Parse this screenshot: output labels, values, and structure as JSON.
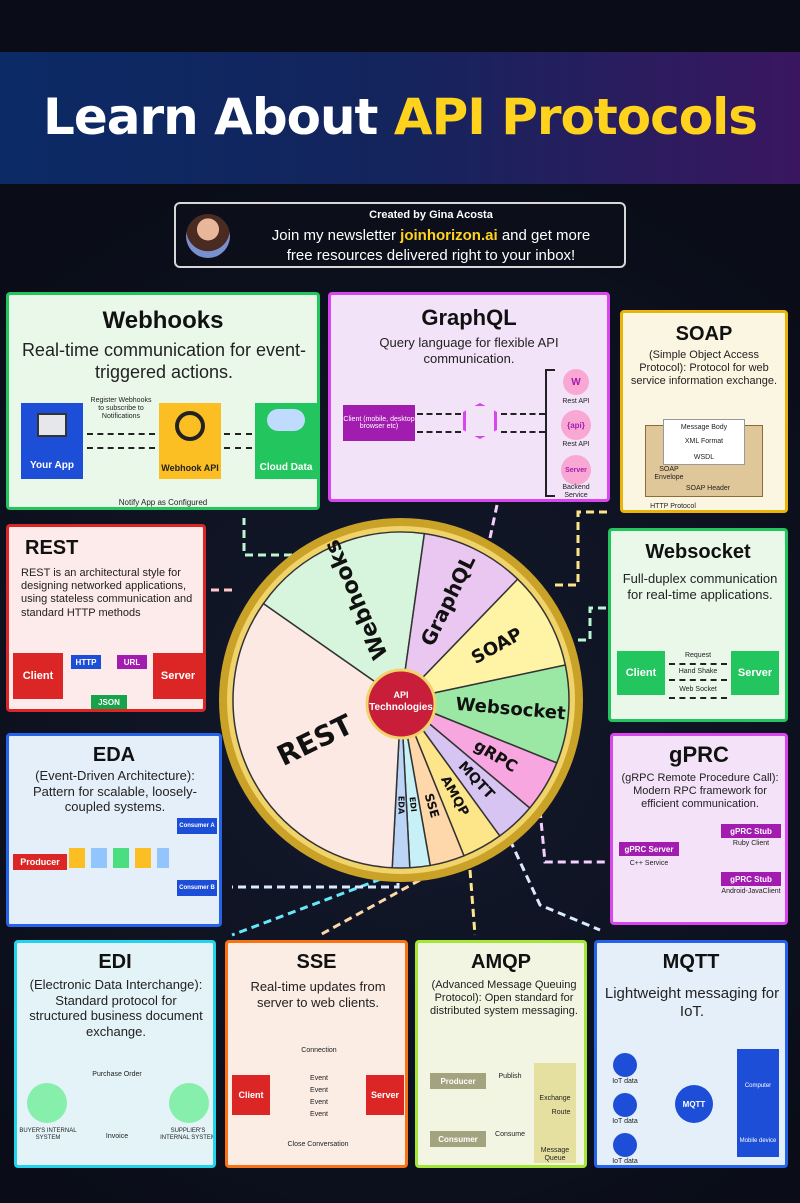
{
  "header": {
    "title_part1": "Learn About ",
    "title_part2": "API Protocols"
  },
  "credit": {
    "created_by": "Created by Gina Acosta",
    "line1_pre": "Join my newsletter ",
    "line1_site": "joinhorizon.ai",
    "line1_post": " and get more",
    "line2": "free resources delivered right to your inbox!"
  },
  "colors": {
    "webhooks": "#22c55e",
    "graphql": "#d946ef",
    "soap": "#eab308",
    "rest": "#dc2626",
    "websocket": "#22c55e",
    "eda": "#2563eb",
    "grpc": "#d946ef",
    "edi": "#22d3ee",
    "sse": "#f97316",
    "amqp": "#a3e635",
    "mqtt": "#2563eb"
  },
  "webhooks": {
    "title": "Webhooks",
    "desc": "Real-time communication for event-triggered actions.",
    "register": "Register Webhooks to subscribe to Notifications",
    "app": "Your App",
    "api": "Webhook API",
    "cloud": "Cloud Data",
    "notify": "Notify App as Configured"
  },
  "graphql": {
    "title": "GraphQL",
    "desc": "Query language for flexible API communication.",
    "client": "Client (mobile, desktop browser etc)",
    "rest_api1": "Rest API",
    "api_chip": "{api}",
    "rest_api2": "Rest API",
    "server": "Server",
    "backend": "Backend Service",
    "w": "W"
  },
  "soap": {
    "title": "SOAP",
    "desc": "(Simple Object Access Protocol): Protocol for web service information exchange.",
    "body": "Message Body",
    "xml": "XML Format",
    "wsdl": "WSDL",
    "envelope": "SOAP Envelope",
    "header": "SOAP Header",
    "http": "HTTP Protocol"
  },
  "rest": {
    "title": "REST",
    "desc": "REST is an architectural style for designing networked applications, using stateless communication and standard HTTP methods",
    "client": "Client",
    "server": "Server",
    "http": "HTTP",
    "url": "URL",
    "json": "JSON"
  },
  "websocket": {
    "title": "Websocket",
    "desc": "Full-duplex communication for real-time applications.",
    "client": "Client",
    "server": "Server",
    "request": "Request",
    "handshake": "Hand Shake",
    "ws": "Web Socket"
  },
  "eda": {
    "title": "EDA",
    "desc": "(Event-Driven Architecture): Pattern for scalable, loosely-coupled systems.",
    "producer": "Producer",
    "consumer_a": "Consumer A",
    "consumer_b": "Consumer B"
  },
  "grpc": {
    "title": "gPRC",
    "desc": "(gRPC Remote Procedure Call): Modern RPC framework for efficient communication.",
    "server": "gPRC Server",
    "cpp": "C++ Service",
    "stub1": "gPRC Stub",
    "ruby": "Ruby Client",
    "stub2": "gPRC Stub",
    "android": "Android-JavaClient"
  },
  "edi": {
    "title": "EDI",
    "desc": "(Electronic Data Interchange): Standard protocol for structured business document exchange.",
    "po": "Purchase Order",
    "invoice": "Invoice",
    "buyer": "BUYER'S INTERNAL SYSTEM",
    "supplier": "SUPPLIER'S INTERNAL SYSTEM"
  },
  "sse": {
    "title": "SSE",
    "desc": "Real-time updates from server to web clients.",
    "client": "Client",
    "server": "Server",
    "connection": "Connection",
    "event": "Event",
    "close": "Close Conversation"
  },
  "amqp": {
    "title": "AMQP",
    "desc": "(Advanced Message Queuing Protocol): Open standard for distributed system messaging.",
    "producer": "Producer",
    "consumer": "Consumer",
    "publish": "Publish",
    "consume": "Consume",
    "exchange": "Exchange",
    "route": "Route",
    "queue": "Message Queue"
  },
  "mqtt": {
    "title": "MQTT",
    "desc": "Lightweight messaging for IoT.",
    "iot": "IoT data",
    "broker": "MQTT",
    "computer": "Computer",
    "mobile": "Mobile device"
  },
  "wheel": {
    "center": "API Technologies",
    "segments": [
      "Webhooks",
      "GraphQL",
      "SOAP",
      "Websocket",
      "gRPC",
      "MQTT",
      "AMQP",
      "SSE",
      "EDI",
      "EDA",
      "REST"
    ]
  }
}
